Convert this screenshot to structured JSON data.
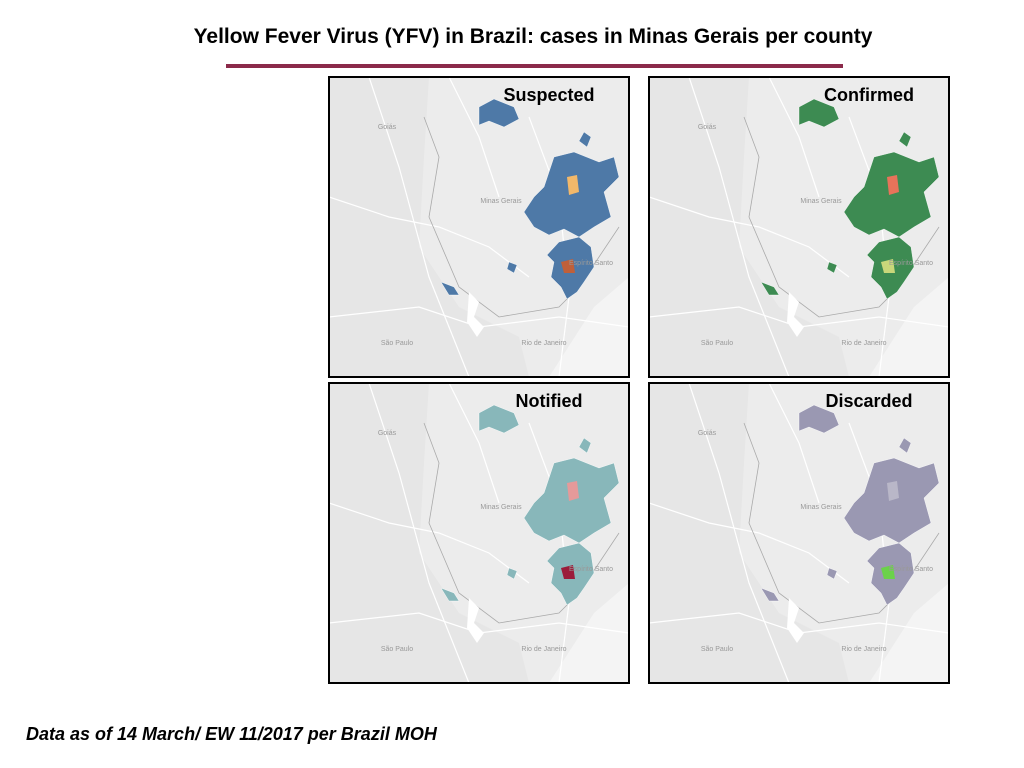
{
  "header": {
    "title": "Yellow Fever Virus (YFV) in Brazil: cases in Minas Gerais per county"
  },
  "panels": [
    {
      "title": "Suspected"
    },
    {
      "title": "Confirmed"
    },
    {
      "title": "Notified"
    },
    {
      "title": "Discarded"
    }
  ],
  "map_labels": [
    "Goiás",
    "Minas Gerais",
    "Espírito Santo",
    "Rio de Janeiro",
    "São Paulo"
  ],
  "footnote": "Data as of 14 March/ EW 11/2017 per Brazil MOH"
}
